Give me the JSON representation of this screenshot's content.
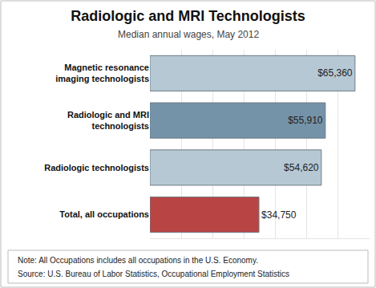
{
  "chart_data": {
    "type": "bar",
    "title": "Radiologic and MRI Technologists",
    "subtitle": "Median annual wages, May 2012",
    "orientation": "horizontal",
    "categories": [
      "Magnetic resonance imaging technologists",
      "Radiologic and MRI technologists",
      "Radiologic technologists",
      "Total, all occupations"
    ],
    "values": [
      65360,
      55910,
      54620,
      34750
    ],
    "value_labels": [
      "$65,360",
      "$55,910",
      "$54,620",
      "$34,750"
    ],
    "colors": [
      "#b6c8d4",
      "#7593a8",
      "#b6c8d4",
      "#b94444"
    ],
    "data_labels": true,
    "xlim": [
      0,
      70000
    ],
    "xticks": [
      0,
      10000,
      20000,
      30000,
      40000,
      50000,
      60000,
      70000
    ],
    "grid": true,
    "tick_labels": "y",
    "annotations": [
      "Note: All Occupations includes all occupations in the U.S. Economy.",
      "Source: U.S. Bureau of Labor Statistics, Occupational Employment Statistics"
    ]
  }
}
